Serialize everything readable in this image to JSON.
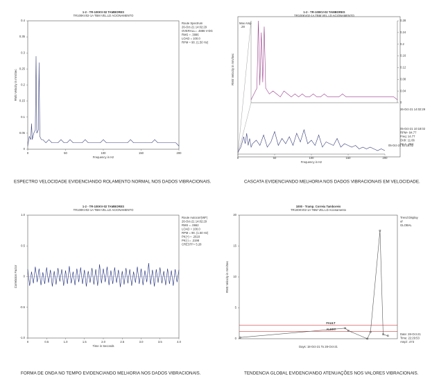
{
  "chart_data": [
    {
      "type": "spectrum",
      "title": "1-2 - TR-100KV-02 TAMBORES",
      "subtitle": "TR100KV02-1A   TBM VEL.LD ACIONAMENTO",
      "caption": "ESPECTRO VELOCIDADE EVIDENCIANDO ROLAMENTO NORMAL NOS DADOS VIBRACIONAIS.",
      "y_label": "RMS Velocity in mm/Sec",
      "x_label": "Frequency in Hz",
      "info": [
        "Route Spectrum",
        "26-Oct-21  14:02:29",
        "OVERALL= .4886 V-DG",
        "RMS = .3886",
        "LOAD = 100.0",
        "RPM = 90. (1.50 Hz)"
      ],
      "xlim": [
        0,
        200
      ],
      "xticks": [
        0,
        50,
        100,
        150,
        200
      ],
      "ylim": [
        0,
        0.4
      ],
      "yticks": [
        0,
        0.05,
        0.1,
        0.15,
        0.2,
        0.25,
        0.3,
        0.35,
        0.4
      ],
      "x": [
        0,
        2,
        4,
        5,
        6,
        8,
        10,
        11,
        12,
        14,
        15,
        16,
        18,
        20,
        24,
        28,
        32,
        36,
        40,
        44,
        48,
        52,
        56,
        60,
        64,
        68,
        72,
        76,
        80,
        84,
        88,
        92,
        96,
        100,
        104,
        108,
        112,
        116,
        120,
        124,
        128,
        132,
        136,
        140,
        144,
        148,
        152,
        156,
        160,
        164,
        168,
        172,
        176,
        180,
        184,
        188,
        192,
        196,
        200
      ],
      "series": [
        {
          "color": "#39407a",
          "values": [
            0.01,
            0.04,
            0.03,
            0.08,
            0.03,
            0.05,
            0.06,
            0.29,
            0.05,
            0.06,
            0.27,
            0.04,
            0.03,
            0.03,
            0.02,
            0.03,
            0.02,
            0.02,
            0.02,
            0.03,
            0.02,
            0.02,
            0.03,
            0.02,
            0.02,
            0.02,
            0.02,
            0.03,
            0.02,
            0.02,
            0.02,
            0.02,
            0.02,
            0.03,
            0.02,
            0.02,
            0.02,
            0.02,
            0.02,
            0.02,
            0.02,
            0.02,
            0.03,
            0.02,
            0.02,
            0.02,
            0.02,
            0.02,
            0.02,
            0.02,
            0.03,
            0.02,
            0.02,
            0.02,
            0.02,
            0.02,
            0.02,
            0.02,
            0.01
          ]
        }
      ]
    },
    {
      "type": "waterfall",
      "title": "1-2 - TR-100KV-02 TAMBORES",
      "subtitle": "TR100KV02-1A   TBM VEL.LD ACIONAMENTO",
      "caption": "CASCATA EVIDENCIANDO MELHORIA NOS DADOS VIBRACIONAIS EM VELOCIDADE.",
      "y_label": "RMS Velocity in mm/Sec",
      "x_label": "Frequency in Hz",
      "max_amp_label": "Max Amp",
      "max_amp": ".28",
      "info": [
        "05-Oct-21 10:18:02",
        "RPM= 94.77",
        "Freq:   14.77",
        "Ordr:   11.66",
        "Sp 1:    .064"
      ],
      "xlim": [
        0,
        200
      ],
      "xticks": [
        0,
        50,
        100,
        150,
        200
      ],
      "ylim": [
        0,
        0.28
      ],
      "yticks": [
        0,
        0.04,
        0.08,
        0.12,
        0.16,
        0.2,
        0.24,
        0.28
      ],
      "x": [
        0,
        4,
        8,
        10,
        12,
        14,
        16,
        18,
        20,
        25,
        30,
        35,
        40,
        45,
        50,
        55,
        60,
        65,
        70,
        75,
        80,
        85,
        90,
        95,
        100,
        105,
        110,
        115,
        120,
        125,
        130,
        135,
        140,
        145,
        150,
        155,
        160,
        165,
        170,
        175,
        180,
        185,
        190,
        195,
        200
      ],
      "series": [
        {
          "name": "26-Oct-21 14:02:29",
          "color": "#9b3c8c",
          "values": [
            0.01,
            0.03,
            0.05,
            0.28,
            0.06,
            0.24,
            0.07,
            0.26,
            0.05,
            0.03,
            0.04,
            0.03,
            0.02,
            0.04,
            0.03,
            0.02,
            0.03,
            0.02,
            0.03,
            0.02,
            0.02,
            0.03,
            0.02,
            0.02,
            0.03,
            0.02,
            0.02,
            0.02,
            0.02,
            0.03,
            0.02,
            0.02,
            0.02,
            0.02,
            0.02,
            0.02,
            0.02,
            0.02,
            0.02,
            0.02,
            0.02,
            0.02,
            0.02,
            0.02,
            0.01
          ]
        },
        {
          "name": "05-Oct-21 10:18:02",
          "color": "#39407a",
          "values": [
            0.01,
            0.04,
            0.1,
            0.06,
            0.12,
            0.05,
            0.09,
            0.04,
            0.06,
            0.08,
            0.05,
            0.11,
            0.04,
            0.07,
            0.13,
            0.05,
            0.09,
            0.06,
            0.1,
            0.05,
            0.12,
            0.07,
            0.14,
            0.06,
            0.08,
            0.05,
            0.11,
            0.04,
            0.07,
            0.06,
            0.05,
            0.09,
            0.04,
            0.06,
            0.05,
            0.04,
            0.05,
            0.03,
            0.04,
            0.03,
            0.04,
            0.03,
            0.02,
            0.03,
            0.02
          ]
        }
      ]
    },
    {
      "type": "waveform",
      "title": "1-2 - TR-100KV-02 TAMBORES",
      "subtitle": "TR100KV02-1A   TBM VEL.LD ACIONAMENTO",
      "caption": "FORMA DE ONDA NO TEMPO EVIDENCIANDO MELHORIA NOS DADOS VIBRACIONAIS.",
      "y_label": "Correlation Factor",
      "x_label": "Time in Seconds",
      "info": [
        "Route Autocorr(WF)",
        "26-Oct-21  14:02:29",
        "RMS = .0662",
        "LOAD = 100.0",
        "RPM = 90. (1.50 Hz)",
        "PK(+) = .2618",
        "PK(-) = .2198",
        "CRESTF= 5.28"
      ],
      "xlim": [
        0,
        4
      ],
      "xticks": [
        0,
        0.5,
        {
          "value": 1,
          "label": "1.0"
        },
        1.5,
        {
          "value": 2,
          "label": "2.0"
        },
        2.5,
        {
          "value": 3,
          "label": "3.0"
        },
        3.5,
        {
          "value": 4,
          "label": "4.0"
        }
      ],
      "ylim": [
        -1,
        1
      ],
      "yticks": [
        {
          "value": -1,
          "label": "-1.0"
        },
        -0.5,
        0,
        0.5,
        {
          "value": 1,
          "label": "1.0"
        }
      ],
      "x": [
        0,
        0.05,
        0.1,
        0.15,
        0.2,
        0.25,
        0.3,
        0.35,
        0.4,
        0.45,
        0.5,
        0.55,
        0.6,
        0.65,
        0.7,
        0.75,
        0.8,
        0.85,
        0.9,
        0.95,
        1,
        1.05,
        1.1,
        1.15,
        1.2,
        1.25,
        1.3,
        1.35,
        1.4,
        1.45,
        1.5,
        1.55,
        1.6,
        1.65,
        1.7,
        1.75,
        1.8,
        1.85,
        1.9,
        1.95,
        2,
        2.05,
        2.1,
        2.15,
        2.2,
        2.25,
        2.3,
        2.35,
        2.4,
        2.45,
        2.5,
        2.55,
        2.6,
        2.65,
        2.7,
        2.75,
        2.8,
        2.85,
        2.9,
        2.95,
        3,
        3.05,
        3.1,
        3.15,
        3.2,
        3.25,
        3.3,
        3.35,
        3.4,
        3.45,
        3.5,
        3.55,
        3.6,
        3.65,
        3.7,
        3.75,
        3.8,
        3.85,
        3.9,
        3.95,
        4
      ],
      "series": [
        {
          "color": "#1c2a7a",
          "values": [
            0.12,
            -0.15,
            0.08,
            -0.11,
            0.16,
            -0.09,
            0.13,
            -0.14,
            0.07,
            -0.12,
            0.15,
            -0.1,
            0.11,
            -0.16,
            0.09,
            -0.13,
            0.14,
            -0.08,
            0.12,
            -0.15,
            0.1,
            -0.12,
            0.17,
            -0.11,
            0.08,
            -0.14,
            0.13,
            -0.09,
            0.15,
            -0.12,
            0.11,
            -0.16,
            0.09,
            -0.1,
            0.14,
            -0.13,
            0.12,
            -0.15,
            0.2,
            -0.11,
            0.13,
            -0.09,
            0.16,
            -0.14,
            0.1,
            -0.12,
            0.15,
            -0.1,
            0.11,
            -0.17,
            0.09,
            -0.13,
            0.14,
            -0.11,
            0.12,
            -0.15,
            0.08,
            -0.1,
            0.16,
            -0.12,
            0.13,
            -0.14,
            0.1,
            -0.09,
            0.22,
            -0.13,
            0.11,
            -0.16,
            0.12,
            -0.1,
            0.15,
            -0.11,
            0.09,
            -0.14,
            0.13,
            -0.12,
            0.1,
            -0.15,
            0.12,
            -0.09,
            0.11
          ]
        }
      ]
    },
    {
      "type": "trend",
      "title": "1000 - Tramp. Correia Tamboreis",
      "subtitle": "TR100KV02-1A   TBM VEL.LD Acionamento",
      "caption": "TENDENCIA GLOBAL EVIDENCIANDO ATENUAÇÕES NOS VALORES VIBRACIONAIS.",
      "y_label": "RMS Velocity in mm/Sec",
      "x_label": "Days: 18-Oct-21 To 28-Oct-21",
      "info": [
        "Trend Display",
        "of",
        "GLOBAL"
      ],
      "info_bottom": [
        "Date:   28-Oct-21",
        "Time:   22:29:53",
        "Ampl:    .473"
      ],
      "thresholds": [
        {
          "label": "FAULT",
          "value": 2.2,
          "color": "#d04040"
        },
        {
          "label": "ALERT",
          "value": 1.2,
          "color": "#d04040"
        }
      ],
      "xlim": [
        0,
        10
      ],
      "ylim": [
        0,
        20
      ],
      "yticks": [
        0,
        5,
        10,
        15,
        20
      ],
      "x": [
        0.05,
        6.7,
        6.9,
        8.1,
        8.3,
        8.9,
        9.1,
        9.4
      ],
      "series": [
        {
          "color": "#555555",
          "values": [
            0.2,
            1.7,
            1.3,
            0,
            1.1,
            17.5,
            0.7,
            0.47
          ]
        }
      ]
    }
  ]
}
